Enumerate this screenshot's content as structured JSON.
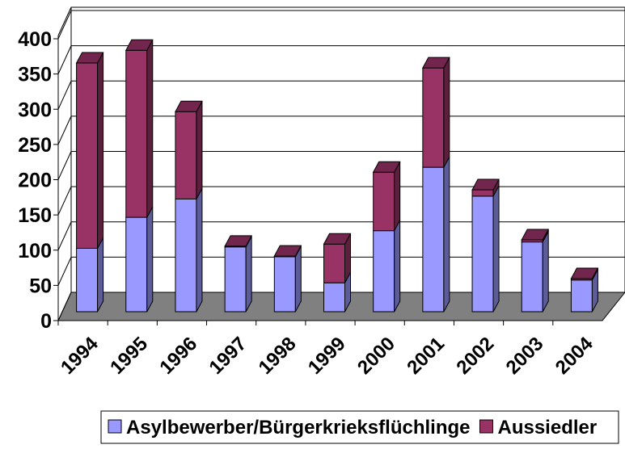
{
  "chart_data": {
    "type": "bar",
    "stacked": true,
    "categories": [
      "1994",
      "1995",
      "1996",
      "1997",
      "1998",
      "1999",
      "2000",
      "2001",
      "2002",
      "2003",
      "2004"
    ],
    "series": [
      {
        "name": "Asylbewerber/Bürgerkrieksflüchlinge",
        "color": "#9999ff",
        "values": [
          90,
          134,
          160,
          92,
          78,
          41,
          115,
          205,
          164,
          99,
          45
        ]
      },
      {
        "name": "Aussiedler",
        "color": "#993366",
        "values": [
          263,
          237,
          124,
          1,
          1,
          55,
          83,
          141,
          9,
          3,
          2
        ]
      }
    ],
    "ylim": [
      0,
      400
    ],
    "yticks": [
      0,
      50,
      100,
      150,
      200,
      250,
      300,
      350,
      400
    ],
    "grid": true,
    "legend": "bottom"
  }
}
